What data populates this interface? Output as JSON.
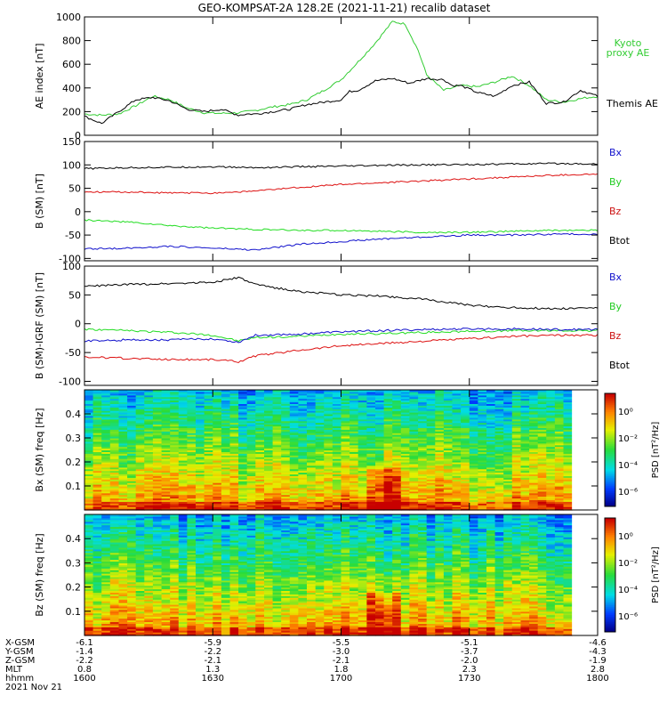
{
  "title": "GEO-KOMPSAT-2A 128.2E (2021-11-21) recalib dataset",
  "colors": {
    "black": "#000000",
    "green": "#22dd22",
    "red": "#dd1111",
    "blue": "#1111cc",
    "kyoto": "#33cc33"
  },
  "time_ticks": [
    "1600",
    "1630",
    "1700",
    "1730",
    "1800"
  ],
  "ephemeris": {
    "labels": [
      "X-GSM",
      "Y-GSM",
      "Z-GSM",
      "MLT",
      "hhmm",
      "2021 Nov 21"
    ],
    "rows": [
      [
        "-6.1",
        "-5.9",
        "-5.5",
        "-5.1",
        "-4.6"
      ],
      [
        "-1.4",
        "-2.2",
        "-3.0",
        "-3.7",
        "-4.3"
      ],
      [
        "-2.2",
        "-2.1",
        "-2.1",
        "-2.0",
        "-1.9"
      ],
      [
        "0.8",
        "1.3",
        "1.8",
        "2.3",
        "2.8"
      ],
      [
        "1600",
        "1630",
        "1700",
        "1730",
        "1800"
      ]
    ]
  },
  "chart_data": [
    {
      "type": "line",
      "ylabel": "AE index [nT]",
      "yticks": [
        "0",
        "200",
        "400",
        "600",
        "800",
        "1000"
      ],
      "ylim": [
        0,
        1000
      ],
      "xlim": [
        0,
        120
      ],
      "series": [
        {
          "name": "Kyoto proxy AE",
          "color": "#33cc33",
          "x": [
            0,
            4,
            8,
            12,
            16,
            20,
            24,
            28,
            32,
            36,
            38,
            40,
            44,
            48,
            52,
            56,
            60,
            64,
            68,
            72,
            75,
            78,
            80,
            84,
            88,
            92,
            96,
            100,
            104,
            108,
            112,
            116,
            120
          ],
          "y": [
            180,
            170,
            180,
            250,
            330,
            300,
            230,
            190,
            185,
            190,
            200,
            210,
            240,
            260,
            300,
            380,
            470,
            620,
            780,
            960,
            940,
            720,
            510,
            380,
            420,
            410,
            450,
            500,
            420,
            300,
            280,
            310,
            330
          ]
        },
        {
          "name": "Themis AE",
          "color": "#000000",
          "x": [
            0,
            4,
            8,
            12,
            16,
            20,
            24,
            28,
            32,
            36,
            38,
            40,
            44,
            48,
            52,
            56,
            60,
            62,
            64,
            68,
            72,
            76,
            80,
            84,
            86,
            88,
            92,
            96,
            100,
            104,
            108,
            112,
            116,
            120
          ],
          "y": [
            160,
            100,
            200,
            300,
            320,
            290,
            220,
            200,
            220,
            170,
            180,
            180,
            200,
            220,
            260,
            280,
            300,
            370,
            380,
            460,
            480,
            440,
            480,
            470,
            420,
            420,
            360,
            330,
            420,
            450,
            270,
            280,
            380,
            330
          ]
        }
      ]
    },
    {
      "type": "line",
      "ylabel": "B (SM) [nT]",
      "yticks": [
        "-100",
        "-50",
        "0",
        "50",
        "100",
        "150"
      ],
      "ylim": [
        -105,
        150
      ],
      "xlim": [
        0,
        120
      ],
      "series": [
        {
          "name": "Bx",
          "color": "#000000",
          "x": [
            0,
            10,
            20,
            30,
            40,
            50,
            60,
            70,
            80,
            90,
            100,
            110,
            120
          ],
          "y": [
            92,
            94,
            95,
            96,
            94,
            96,
            97,
            99,
            100,
            101,
            102,
            103,
            102
          ]
        },
        {
          "name": "By",
          "color": "#22dd22",
          "x": [
            0,
            10,
            20,
            30,
            40,
            50,
            60,
            70,
            80,
            90,
            100,
            110,
            120
          ],
          "y": [
            -18,
            -22,
            -30,
            -35,
            -38,
            -40,
            -40,
            -42,
            -45,
            -44,
            -42,
            -40,
            -40
          ]
        },
        {
          "name": "Bz",
          "color": "#dd1111",
          "x": [
            0,
            10,
            20,
            30,
            40,
            50,
            60,
            70,
            80,
            90,
            100,
            110,
            120
          ],
          "y": [
            42,
            42,
            40,
            40,
            44,
            52,
            58,
            62,
            66,
            70,
            74,
            78,
            80
          ]
        },
        {
          "name": "Btot",
          "color": "#1111cc",
          "x": [
            0,
            10,
            20,
            30,
            40,
            50,
            60,
            70,
            80,
            90,
            100,
            110,
            120
          ],
          "y": [
            -80,
            -78,
            -74,
            -78,
            -82,
            -70,
            -64,
            -58,
            -54,
            -50,
            -50,
            -48,
            -48
          ]
        }
      ]
    },
    {
      "type": "line",
      "ylabel": "B (SM)-IGRF (SM) [nT]",
      "yticks": [
        "-100",
        "-50",
        "0",
        "50",
        "100"
      ],
      "ylim": [
        -107,
        100
      ],
      "xlim": [
        0,
        120
      ],
      "series": [
        {
          "name": "Bx",
          "color": "#000000",
          "x": [
            0,
            10,
            20,
            30,
            36,
            40,
            50,
            60,
            70,
            80,
            90,
            100,
            110,
            120
          ],
          "y": [
            65,
            68,
            70,
            72,
            80,
            68,
            56,
            50,
            48,
            42,
            32,
            28,
            26,
            28
          ]
        },
        {
          "name": "By",
          "color": "#22dd22",
          "x": [
            0,
            10,
            20,
            30,
            36,
            40,
            50,
            60,
            70,
            80,
            90,
            100,
            110,
            120
          ],
          "y": [
            -10,
            -12,
            -15,
            -20,
            -30,
            -24,
            -22,
            -18,
            -17,
            -15,
            -13,
            -12,
            -12,
            -12
          ]
        },
        {
          "name": "Bz",
          "color": "#dd1111",
          "x": [
            0,
            10,
            20,
            30,
            36,
            40,
            50,
            60,
            70,
            80,
            90,
            100,
            110,
            120
          ],
          "y": [
            -58,
            -60,
            -62,
            -62,
            -66,
            -56,
            -46,
            -38,
            -34,
            -30,
            -26,
            -22,
            -20,
            -20
          ]
        },
        {
          "name": "Btot",
          "color": "#1111cc",
          "x": [
            0,
            10,
            20,
            30,
            36,
            40,
            50,
            60,
            70,
            80,
            90,
            100,
            110,
            120
          ],
          "y": [
            -30,
            -28,
            -28,
            -26,
            -32,
            -20,
            -18,
            -14,
            -12,
            -10,
            -9,
            -9,
            -10,
            -10
          ]
        }
      ]
    },
    {
      "type": "heatmap",
      "ylabel": "Bx (SM) freq [Hz]",
      "yticks": [
        "0.1",
        "0.2",
        "0.3",
        "0.4"
      ],
      "ylim": [
        0,
        0.5
      ],
      "gap": [
        57,
        60
      ],
      "colorbar": {
        "label": "PSD [nT²/Hz]",
        "ticks": [
          "10⁰",
          "10⁻²",
          "10⁻⁴",
          "10⁻⁶"
        ]
      }
    },
    {
      "type": "heatmap",
      "ylabel": "Bz (SM) freq [Hz]",
      "yticks": [
        "0.1",
        "0.2",
        "0.3",
        "0.4"
      ],
      "ylim": [
        0,
        0.5
      ],
      "gap": [
        57,
        60
      ],
      "colorbar": {
        "label": "PSD [nT²/Hz]",
        "ticks": [
          "10⁰",
          "10⁻²",
          "10⁻⁴",
          "10⁻⁶"
        ]
      }
    }
  ]
}
